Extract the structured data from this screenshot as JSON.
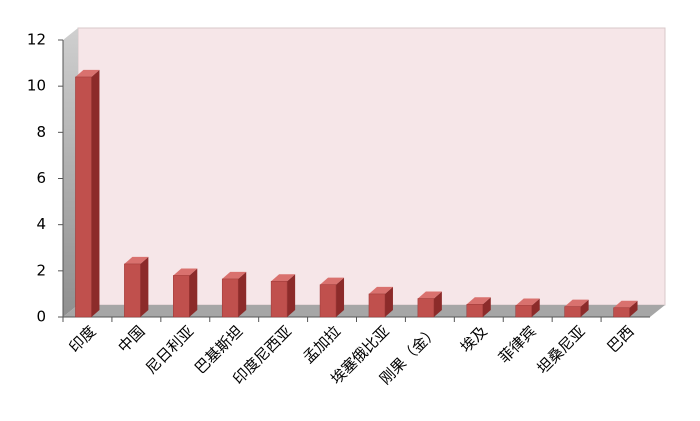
{
  "chart_data": {
    "type": "bar",
    "categories": [
      "印度",
      "中国",
      "尼日利亚",
      "巴基斯坦",
      "印度尼西亚",
      "孟加拉",
      "埃塞俄比亚",
      "刚果（金）",
      "埃及",
      "菲律宾",
      "坦桑尼亚",
      "巴西"
    ],
    "values": [
      10.4,
      2.3,
      1.8,
      1.65,
      1.55,
      1.4,
      1.0,
      0.8,
      0.55,
      0.5,
      0.45,
      0.4
    ],
    "color": "#c0504d",
    "ylim": [
      0,
      12
    ],
    "yticks": [
      0,
      2,
      4,
      6,
      8,
      10,
      12
    ]
  }
}
